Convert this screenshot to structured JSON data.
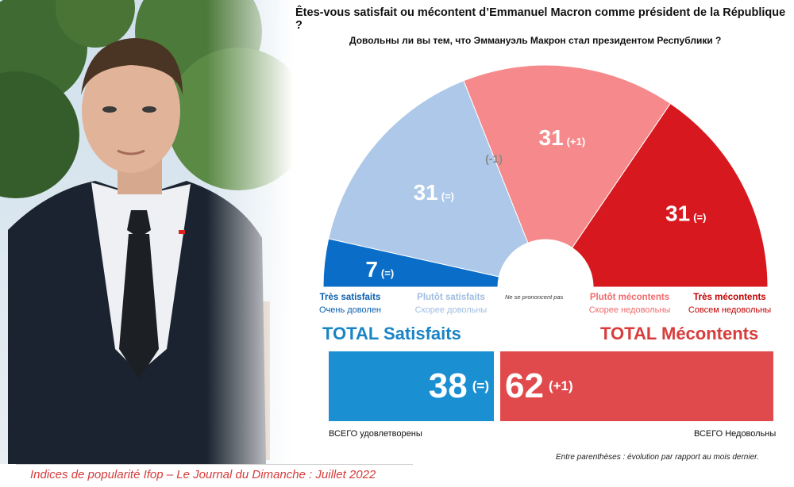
{
  "header": {
    "question_fr": "Êtes-vous satisfait ou mécontent d’Emmanuel Macron comme président de la République ?",
    "question_ru": "Довольны ли вы тем, что Эммануэль Макрон стал президентом Республики ?"
  },
  "chart_data": {
    "type": "pie",
    "subtype": "semicircle-donut",
    "categories": [
      "Très satisfaits",
      "Plutôt satisfaits",
      "Ne se prononcent pas",
      "Plutôt mécontents",
      "Très mécontents"
    ],
    "categories_ru": [
      "Очень доволен",
      "Скорее довольны",
      "",
      "Скорее недовольны",
      "Совсем недовольны"
    ],
    "values": [
      7,
      31,
      0,
      31,
      31
    ],
    "changes": [
      "(=)",
      "(=)",
      "(-1)",
      "(+1)",
      "(=)"
    ],
    "colors": [
      "#0a6ec8",
      "#adc8e8",
      "#aaaaaa",
      "#f5898b",
      "#d7191f"
    ],
    "label_colors": [
      "#0a5fb0",
      "#9fbde0",
      "#333333",
      "#f06a6c",
      "#c00000"
    ],
    "totals": [
      {
        "label": "TOTAL Satisfaits",
        "value": "38",
        "change": "(=)",
        "label_ru": "ВСЕГО удовлетворены",
        "color": "#1a8fd2",
        "title_color": "#1a84c4"
      },
      {
        "label": "TOTAL Mécontents",
        "value": "62",
        "change": "(+1)",
        "label_ru": "ВСЕГО Недовольны",
        "color": "#e04a4d",
        "title_color": "#d83c3c"
      }
    ]
  },
  "nsp_label": "Ne se prononcent pas",
  "note": "Entre parenthèses : évolution par rapport au mois dernier.",
  "footer": "Indices de popularité Ifop – Le Journal du Dimanche : Juillet 2022"
}
